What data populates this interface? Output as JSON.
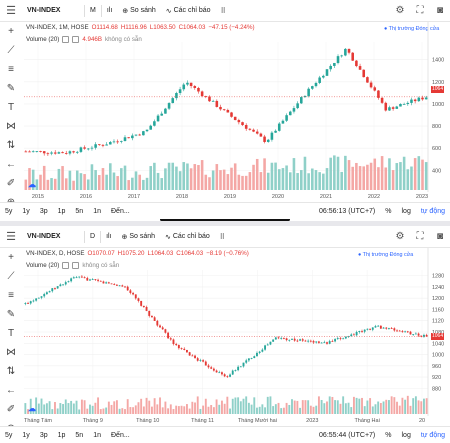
{
  "panels": [
    {
      "toolbar": {
        "symbol": "VN-INDEX",
        "interval": "M",
        "compare_label": "So sánh",
        "indicators_label": "Các chỉ báo"
      },
      "ohlc": {
        "title": "VN-INDEX, 1M, HOSE",
        "open": "O1114.68",
        "high": "H1116.96",
        "low": "L1063.50",
        "close": "C1064.03",
        "change": "−47.15 (−4.24%)"
      },
      "volume": {
        "label": "Volume (20)",
        "value": "4.946B",
        "na": "không có sẵn"
      },
      "trading_label": "Thị trường Đóng cửa",
      "range_buttons": [
        "5y",
        "1y",
        "3p",
        "1p",
        "5n",
        "1n",
        "Đến..."
      ],
      "time": "06:56:13 (UTC+7)",
      "scale_pct": "%",
      "scale_log": "log",
      "scale_auto": "tự động",
      "price_tag": "1064"
    },
    {
      "toolbar": {
        "symbol": "VN-INDEX",
        "interval": "D",
        "compare_label": "So sánh",
        "indicators_label": "Các chỉ báo"
      },
      "ohlc": {
        "title": "VN-INDEX, D, HOSE",
        "open": "O1070.07",
        "high": "H1075.20",
        "low": "L1064.03",
        "close": "C1064.03",
        "change": "−8.19 (−0.76%)"
      },
      "volume": {
        "label": "Volume (20)",
        "value": "",
        "na": "không có sẵn"
      },
      "trading_label": "Thị trường Đóng cửa",
      "range_buttons": [
        "5y",
        "1y",
        "3p",
        "1p",
        "5n",
        "1n",
        "Đến..."
      ],
      "time": "06:55:44 (UTC+7)",
      "scale_pct": "%",
      "scale_log": "log",
      "scale_auto": "tự động",
      "price_tag": "1064"
    }
  ],
  "chart_data": [
    {
      "type": "candlestick",
      "title": "VN-INDEX, 1M, HOSE",
      "x_ticks": [
        "2015",
        "2016",
        "2017",
        "2018",
        "2019",
        "2020",
        "2021",
        "2022",
        "2023"
      ],
      "y_ticks": [
        400,
        600,
        800,
        1000,
        1200,
        1400
      ],
      "ylim": [
        330,
        1560
      ],
      "key_points": [
        {
          "x": "2014",
          "close": 570
        },
        {
          "x": "2015",
          "close": 560
        },
        {
          "x": "2016",
          "close": 640
        },
        {
          "x": "2017",
          "close": 750
        },
        {
          "x": "2018-04",
          "close": 1200
        },
        {
          "x": "2019",
          "close": 920
        },
        {
          "x": "2020-04",
          "close": 660
        },
        {
          "x": "2021",
          "close": 1100
        },
        {
          "x": "2022-01",
          "close": 1500
        },
        {
          "x": "2022-11",
          "close": 950
        },
        {
          "x": "2023",
          "close": 1064
        }
      ],
      "volume": true
    },
    {
      "type": "candlestick",
      "title": "VN-INDEX, D, HOSE",
      "x_ticks": [
        "Tháng Tám",
        "Tháng 9",
        "Tháng 10",
        "Tháng 11",
        "Tháng Mười hai",
        "2023",
        "Tháng Hai",
        "20"
      ],
      "y_ticks": [
        880,
        920,
        960,
        1000,
        1040,
        1080,
        1120,
        1160,
        1200,
        1240,
        1280
      ],
      "ylim": [
        860,
        1300
      ],
      "key_points": [
        {
          "x": "Tháng Bảy",
          "close": 1180
        },
        {
          "x": "Tháng Tám",
          "close": 1275
        },
        {
          "x": "Tháng 9",
          "close": 1240
        },
        {
          "x": "Tháng 10",
          "close": 1030
        },
        {
          "x": "Tháng 11",
          "close": 920
        },
        {
          "x": "Tháng Mười hai",
          "close": 1060
        },
        {
          "x": "2023",
          "close": 1040
        },
        {
          "x": "Tháng Hai",
          "close": 1100
        },
        {
          "x": "20",
          "close": 1064
        }
      ],
      "volume": true
    }
  ]
}
